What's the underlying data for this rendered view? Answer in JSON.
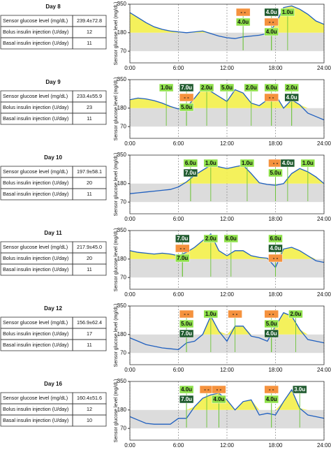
{
  "panels": [
    {
      "day": "Day 8",
      "table": [
        [
          "Sensor glucose level (mg/dL)",
          "239.4±72.8"
        ],
        [
          "Bolus insulin injection (U/day)",
          "12"
        ],
        [
          "Basal insulin injection (U/day)",
          "11"
        ]
      ],
      "chart": {
        "type": "line",
        "y_label": "Sensor glucose level (mg/dL)",
        "color": "#1f5fbf",
        "x": [
          0,
          1,
          2,
          3,
          4,
          5,
          6,
          7,
          8,
          9,
          10,
          11,
          12,
          13,
          14,
          15,
          16,
          17,
          18,
          19,
          20,
          21,
          22,
          23,
          24
        ],
        "values": [
          300,
          270,
          240,
          215,
          200,
          190,
          185,
          180,
          185,
          190,
          175,
          160,
          150,
          145,
          155,
          160,
          165,
          175,
          230,
          330,
          340,
          320,
          290,
          250,
          230
        ],
        "xlim": [
          0,
          24
        ],
        "xticks": [
          {
            "value": 0,
            "label": "0:00"
          },
          {
            "value": 6,
            "label": "6:00"
          },
          {
            "value": 12,
            "label": "12:00"
          },
          {
            "value": 18,
            "label": "18:00"
          },
          {
            "value": 24,
            "label": "24:00"
          }
        ],
        "ylim": [
          0,
          350
        ],
        "yticks": [
          70,
          180,
          350
        ],
        "annotations": [
          {
            "x": 14,
            "text": "- -",
            "color": "#f5923e"
          },
          {
            "x": 14,
            "text": "4.0u",
            "color": "#8ee04a"
          },
          {
            "x": 17.5,
            "text": "4.0u",
            "color": "#1f5a2e"
          },
          {
            "x": 17.5,
            "text": "- -",
            "color": "#f5923e"
          },
          {
            "x": 17.5,
            "text": "4.0u",
            "color": "#8ee04a"
          },
          {
            "x": 19.5,
            "text": "1.0u",
            "color": "#8ee04a"
          }
        ]
      }
    },
    {
      "day": "Day 9",
      "table": [
        [
          "Sensor glucose level (mg/dL)",
          "233.4±55.9"
        ],
        [
          "Bolus insulin injection (U/day)",
          "23"
        ],
        [
          "Basal insulin injection (U/day)",
          "11"
        ]
      ],
      "chart": {
        "type": "line",
        "y_label": "Sensor glucose level (mg/dL)",
        "color": "#1f5fbf",
        "x": [
          0,
          1,
          2,
          3,
          4,
          5,
          6,
          7,
          8,
          9,
          10,
          11,
          12,
          13,
          14,
          15,
          16,
          17,
          18,
          19,
          20,
          21,
          22,
          23,
          24
        ],
        "values": [
          230,
          240,
          235,
          225,
          210,
          190,
          175,
          185,
          240,
          300,
          280,
          250,
          220,
          290,
          270,
          210,
          195,
          230,
          260,
          180,
          230,
          200,
          150,
          130,
          110
        ],
        "xlim": [
          0,
          24
        ],
        "xticks": [
          {
            "value": 0,
            "label": "0:00"
          },
          {
            "value": 6,
            "label": "6:00"
          },
          {
            "value": 12,
            "label": "12:00"
          },
          {
            "value": 18,
            "label": "18:00"
          },
          {
            "value": 24,
            "label": "24:00"
          }
        ],
        "ylim": [
          0,
          350
        ],
        "yticks": [
          70,
          180,
          350
        ],
        "annotations": [
          {
            "x": 4.5,
            "text": "1.0u",
            "color": "#8ee04a"
          },
          {
            "x": 7,
            "text": "7.0u",
            "color": "#1f5a2e"
          },
          {
            "x": 7,
            "text": "- -",
            "color": "#f5923e"
          },
          {
            "x": 7,
            "text": "5.0u",
            "color": "#8ee04a"
          },
          {
            "x": 9.5,
            "text": "2.0u",
            "color": "#8ee04a"
          },
          {
            "x": 12,
            "text": "5.0u",
            "color": "#8ee04a"
          },
          {
            "x": 15,
            "text": "2.0u",
            "color": "#8ee04a"
          },
          {
            "x": 17.5,
            "text": "6.0u",
            "color": "#8ee04a"
          },
          {
            "x": 17.5,
            "text": "- -",
            "color": "#f5923e"
          },
          {
            "x": 20,
            "text": "2.0u",
            "color": "#8ee04a"
          },
          {
            "x": 20,
            "text": "4.0u",
            "color": "#1f5a2e"
          }
        ]
      }
    },
    {
      "day": "Day 10",
      "table": [
        [
          "Sensor glucose level (mg/dL)",
          "197.9±58.1"
        ],
        [
          "Bolus insulin injection (U/day)",
          "20"
        ],
        [
          "Basal insulin injection (U/day)",
          "11"
        ]
      ],
      "chart": {
        "type": "line",
        "y_label": "Sensor glucose level (mg/dL)",
        "color": "#1f5fbf",
        "x": [
          0,
          1,
          2,
          3,
          4,
          5,
          6,
          7,
          8,
          9,
          10,
          11,
          12,
          13,
          14,
          15,
          16,
          17,
          18,
          19,
          20,
          21,
          22,
          23,
          24
        ],
        "values": [
          120,
          125,
          130,
          135,
          140,
          145,
          160,
          190,
          230,
          260,
          290,
          280,
          270,
          280,
          290,
          240,
          185,
          175,
          170,
          180,
          240,
          270,
          250,
          220,
          180
        ],
        "xlim": [
          0,
          24
        ],
        "xticks": [
          {
            "value": 0,
            "label": "0:00"
          },
          {
            "value": 6,
            "label": "6:00"
          },
          {
            "value": 12,
            "label": "12:00"
          },
          {
            "value": 18,
            "label": "18:00"
          },
          {
            "value": 24,
            "label": "24:00"
          }
        ],
        "ylim": [
          0,
          350
        ],
        "yticks": [
          70,
          180,
          350
        ],
        "annotations": [
          {
            "x": 7.5,
            "text": "6.0u",
            "color": "#8ee04a"
          },
          {
            "x": 7.5,
            "text": "7.0u",
            "color": "#1f5a2e"
          },
          {
            "x": 10,
            "text": "1.0u",
            "color": "#8ee04a"
          },
          {
            "x": 14.5,
            "text": "1.0u",
            "color": "#8ee04a"
          },
          {
            "x": 18,
            "text": "- -",
            "color": "#f5923e"
          },
          {
            "x": 18,
            "text": "5.0u",
            "color": "#8ee04a"
          },
          {
            "x": 19.5,
            "text": "4.0u",
            "color": "#1f5a2e"
          },
          {
            "x": 22,
            "text": "1.0u",
            "color": "#8ee04a"
          }
        ]
      }
    },
    {
      "day": "Day 11",
      "table": [
        [
          "Sensor glucose level (mg/dL)",
          "217.9±45.0"
        ],
        [
          "Bolus insulin injection (U/day)",
          "20"
        ],
        [
          "Basal insulin injection (U/day)",
          "11"
        ]
      ],
      "chart": {
        "type": "line",
        "y_label": "Sensor glucose level (mg/dL)",
        "color": "#1f5fbf",
        "x": [
          0,
          1,
          2,
          3,
          4,
          5,
          6,
          7,
          8,
          9,
          10,
          11,
          12,
          13,
          14,
          15,
          16,
          17,
          18,
          19,
          20,
          21,
          22,
          23,
          24
        ],
        "values": [
          230,
          220,
          215,
          210,
          215,
          210,
          200,
          220,
          250,
          290,
          330,
          230,
          200,
          230,
          230,
          200,
          190,
          185,
          130,
          240,
          250,
          230,
          200,
          170,
          160
        ],
        "xlim": [
          0,
          24
        ],
        "xticks": [
          {
            "value": 0,
            "label": "0:00"
          },
          {
            "value": 6,
            "label": "6:00"
          },
          {
            "value": 12,
            "label": "12:00"
          },
          {
            "value": 18,
            "label": "18:00"
          },
          {
            "value": 24,
            "label": "24:00"
          }
        ],
        "ylim": [
          0,
          350
        ],
        "yticks": [
          70,
          180,
          350
        ],
        "annotations": [
          {
            "x": 6.5,
            "text": "7.0u",
            "color": "#1f5a2e"
          },
          {
            "x": 6.5,
            "text": "- -",
            "color": "#f5923e"
          },
          {
            "x": 6.5,
            "text": "7.0u",
            "color": "#8ee04a"
          },
          {
            "x": 10,
            "text": "2.0u",
            "color": "#8ee04a"
          },
          {
            "x": 12.5,
            "text": "6.0u",
            "color": "#8ee04a"
          },
          {
            "x": 18,
            "text": "6.0u",
            "color": "#8ee04a"
          },
          {
            "x": 18,
            "text": "4.0u",
            "color": "#1f5a2e"
          },
          {
            "x": 18,
            "text": "- -",
            "color": "#f5923e"
          }
        ]
      }
    },
    {
      "day": "Day 12",
      "table": [
        [
          "Sensor glucose level (mg/dL)",
          "156.9±62.4"
        ],
        [
          "Bolus insulin injection (U/day)",
          "17"
        ],
        [
          "Basal insulin injection (U/day)",
          "11"
        ]
      ],
      "chart": {
        "type": "line",
        "y_label": "Sensor glucose level (mg/dL)",
        "color": "#1f5fbf",
        "x": [
          0,
          1,
          2,
          3,
          4,
          5,
          6,
          7,
          8,
          9,
          10,
          11,
          12,
          13,
          14,
          15,
          16,
          17,
          18,
          19,
          20,
          21,
          22,
          23,
          24
        ],
        "values": [
          160,
          140,
          120,
          110,
          100,
          95,
          90,
          130,
          140,
          180,
          290,
          200,
          140,
          230,
          230,
          170,
          160,
          140,
          230,
          310,
          290,
          210,
          150,
          140,
          130
        ],
        "xlim": [
          0,
          24
        ],
        "xticks": [
          {
            "value": 0,
            "label": "0:00"
          },
          {
            "value": 6,
            "label": "6:00"
          },
          {
            "value": 12,
            "label": "12:00"
          },
          {
            "value": 18,
            "label": "18:00"
          },
          {
            "value": 24,
            "label": "24:00"
          }
        ],
        "ylim": [
          0,
          350
        ],
        "yticks": [
          70,
          180,
          350
        ],
        "annotations": [
          {
            "x": 7,
            "text": "- -",
            "color": "#f5923e"
          },
          {
            "x": 7,
            "text": "5.0u",
            "color": "#8ee04a"
          },
          {
            "x": 7,
            "text": "7.0u",
            "color": "#1f5a2e"
          },
          {
            "x": 10,
            "text": "1.0u",
            "color": "#8ee04a"
          },
          {
            "x": 13,
            "text": "- -",
            "color": "#f5923e"
          },
          {
            "x": 17.5,
            "text": "- -",
            "color": "#f5923e"
          },
          {
            "x": 17.5,
            "text": "5.0u",
            "color": "#8ee04a"
          },
          {
            "x": 17.5,
            "text": "4.0u",
            "color": "#1f5a2e"
          },
          {
            "x": 20.5,
            "text": "2.0u",
            "color": "#8ee04a"
          }
        ]
      }
    },
    {
      "day": "Day 16",
      "table": [
        [
          "Sensor glucose level (mg/dL)",
          "160.4±51.6"
        ],
        [
          "Bolus insulin injection (U/day)",
          "12"
        ],
        [
          "Basal insulin injection (U/day)",
          "10"
        ]
      ],
      "chart": {
        "type": "line",
        "y_label": "Sensor glucose level (mg/dL)",
        "color": "#1f5fbf",
        "x": [
          0,
          1,
          2,
          3,
          4,
          5,
          6,
          7,
          8,
          9,
          10,
          11,
          12,
          13,
          14,
          15,
          16,
          17,
          18,
          19,
          20,
          21,
          22,
          23,
          24
        ],
        "values": [
          140,
          120,
          100,
          95,
          95,
          95,
          130,
          130,
          200,
          250,
          270,
          280,
          240,
          180,
          230,
          240,
          150,
          160,
          150,
          230,
          300,
          190,
          150,
          140,
          130
        ],
        "xlim": [
          0,
          24
        ],
        "xticks": [
          {
            "value": 0,
            "label": "0:00"
          },
          {
            "value": 6,
            "label": "6:00"
          },
          {
            "value": 12,
            "label": "12:00"
          },
          {
            "value": 18,
            "label": "18:00"
          },
          {
            "value": 24,
            "label": "24:00"
          }
        ],
        "ylim": [
          0,
          350
        ],
        "yticks": [
          70,
          180,
          350
        ],
        "annotations": [
          {
            "x": 7,
            "text": "4.0u",
            "color": "#8ee04a"
          },
          {
            "x": 7,
            "text": "7.0u",
            "color": "#1f5a2e"
          },
          {
            "x": 9.5,
            "text": "- -",
            "color": "#f5923e"
          },
          {
            "x": 11,
            "text": "- -",
            "color": "#f5923e"
          },
          {
            "x": 11,
            "text": "4.0u",
            "color": "#8ee04a"
          },
          {
            "x": 17.5,
            "text": "- -",
            "color": "#f5923e"
          },
          {
            "x": 17.5,
            "text": "4.0u",
            "color": "#8ee04a"
          },
          {
            "x": 21,
            "text": "3.0u",
            "color": "#1f5a2e"
          }
        ]
      }
    }
  ]
}
